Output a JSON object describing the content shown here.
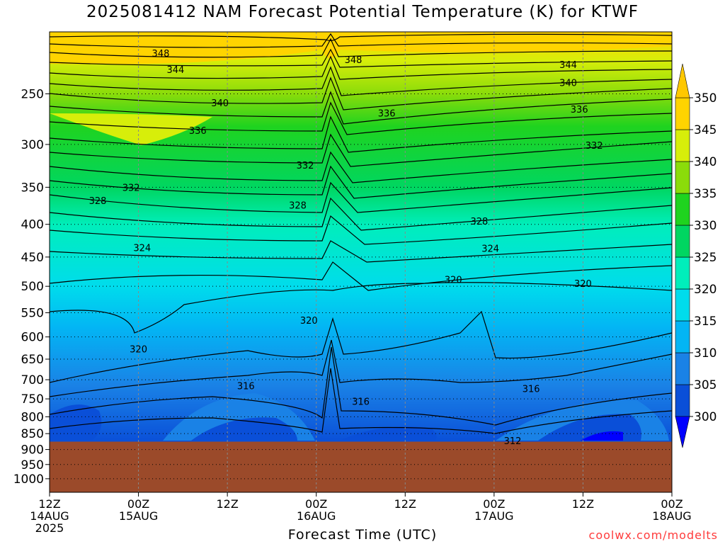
{
  "title": "2025081412 NAM Forecast Potential Temperature (K) for KTWF",
  "xaxis_label": "Forecast Time (UTC)",
  "credit": "coolwx.com/modelts",
  "chart_data": {
    "type": "heatmap",
    "title": "2025081412 NAM Forecast Potential Temperature (K) for KTWF",
    "xlabel": "Forecast Time (UTC)",
    "ylabel": "",
    "y_scale": "log",
    "ylim": [
      1050,
      200
    ],
    "y_ticks": [
      250,
      300,
      350,
      400,
      450,
      500,
      550,
      600,
      650,
      700,
      750,
      800,
      850,
      900,
      950,
      1000
    ],
    "x_ticks": [
      {
        "hour": 0,
        "l1": "12Z",
        "l2": "14AUG",
        "l3": "2025"
      },
      {
        "hour": 12,
        "l1": "00Z",
        "l2": "15AUG",
        "l3": ""
      },
      {
        "hour": 24,
        "l1": "12Z",
        "l2": "",
        "l3": ""
      },
      {
        "hour": 36,
        "l1": "00Z",
        "l2": "16AUG",
        "l3": ""
      },
      {
        "hour": 48,
        "l1": "12Z",
        "l2": "",
        "l3": ""
      },
      {
        "hour": 60,
        "l1": "00Z",
        "l2": "17AUG",
        "l3": ""
      },
      {
        "hour": 72,
        "l1": "12Z",
        "l2": "",
        "l3": ""
      },
      {
        "hour": 84,
        "l1": "00Z",
        "l2": "18AUG",
        "l3": ""
      }
    ],
    "colorbar": {
      "levels": [
        300,
        305,
        310,
        315,
        320,
        325,
        330,
        335,
        340,
        345,
        350
      ],
      "colors": [
        "#0000ff",
        "#0a4fd8",
        "#1a82e6",
        "#03b5f4",
        "#00dcec",
        "#00eebb",
        "#00d661",
        "#1fd31f",
        "#8bdc0a",
        "#d7ee0a",
        "#ffd400",
        "#ffc800"
      ]
    },
    "terrain_pressure": 875,
    "contour_labels": [
      {
        "text": "348",
        "hour": 15.0,
        "p": 216
      },
      {
        "text": "348",
        "hour": 41.0,
        "p": 221
      },
      {
        "text": "344",
        "hour": 17.0,
        "p": 229
      },
      {
        "text": "344",
        "hour": 70.0,
        "p": 225
      },
      {
        "text": "340",
        "hour": 23.0,
        "p": 258
      },
      {
        "text": "340",
        "hour": 70.0,
        "p": 240
      },
      {
        "text": "336",
        "hour": 20.0,
        "p": 285
      },
      {
        "text": "336",
        "hour": 45.5,
        "p": 268
      },
      {
        "text": "336",
        "hour": 71.5,
        "p": 264
      },
      {
        "text": "332",
        "hour": 34.5,
        "p": 323
      },
      {
        "text": "332",
        "hour": 11.0,
        "p": 350
      },
      {
        "text": "332",
        "hour": 73.5,
        "p": 301
      },
      {
        "text": "328",
        "hour": 6.5,
        "p": 367
      },
      {
        "text": "328",
        "hour": 33.5,
        "p": 373
      },
      {
        "text": "328",
        "hour": 58.0,
        "p": 395
      },
      {
        "text": "324",
        "hour": 12.5,
        "p": 435
      },
      {
        "text": "324",
        "hour": 59.5,
        "p": 436
      },
      {
        "text": "320",
        "hour": 54.5,
        "p": 488
      },
      {
        "text": "320",
        "hour": 72.0,
        "p": 495
      },
      {
        "text": "320",
        "hour": 35.0,
        "p": 565
      },
      {
        "text": "320",
        "hour": 12.0,
        "p": 626
      },
      {
        "text": "316",
        "hour": 26.5,
        "p": 715
      },
      {
        "text": "316",
        "hour": 42.0,
        "p": 757
      },
      {
        "text": "316",
        "hour": 65.0,
        "p": 723
      },
      {
        "text": "312",
        "hour": 62.5,
        "p": 872
      }
    ]
  }
}
